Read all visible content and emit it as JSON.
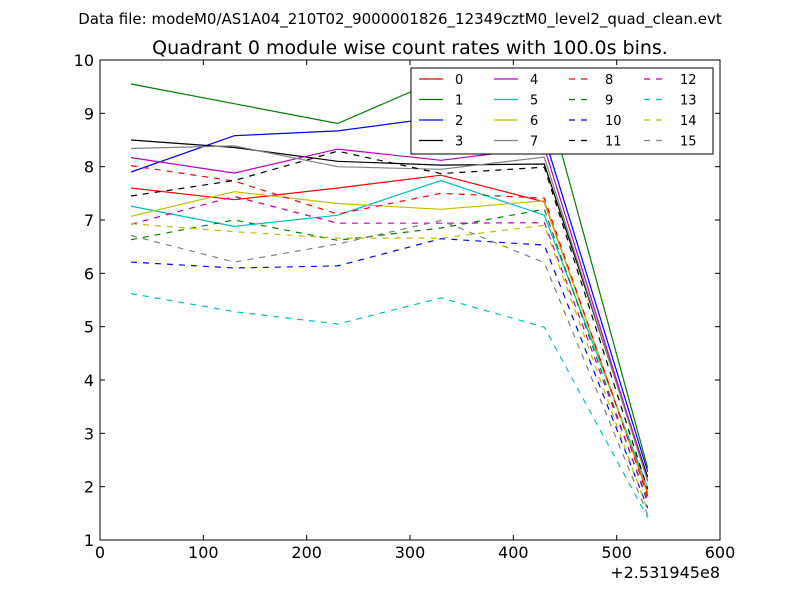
{
  "suptitle": "Data file: modeM0/AS1A04_210T02_9000001826_12349cztM0_level2_quad_clean.evt",
  "chart_data": {
    "type": "line",
    "title": "Quadrant 0 module wise count rates with 100.0s bins.",
    "xlabel": "",
    "ylabel": "",
    "x_offset_label": "+2.531945e8",
    "xlim": [
      0,
      600
    ],
    "ylim": [
      1,
      10
    ],
    "xticks": [
      0,
      100,
      200,
      300,
      400,
      500,
      600
    ],
    "yticks": [
      1,
      2,
      3,
      4,
      5,
      6,
      7,
      8,
      9,
      10
    ],
    "grid": false,
    "legend_position": "top-right",
    "x": [
      30,
      130,
      230,
      330,
      430,
      530
    ],
    "series": [
      {
        "name": "0",
        "color": "#ff0000",
        "dash": "solid",
        "values": [
          7.6,
          7.38,
          7.6,
          7.84,
          7.34,
          1.88
        ]
      },
      {
        "name": "1",
        "color": "#008000",
        "dash": "solid",
        "values": [
          9.55,
          9.18,
          8.81,
          9.65,
          9.44,
          2.35
        ]
      },
      {
        "name": "2",
        "color": "#0000ff",
        "dash": "solid",
        "values": [
          7.9,
          8.58,
          8.67,
          8.93,
          8.56,
          2.28
        ]
      },
      {
        "name": "3",
        "color": "#000000",
        "dash": "solid",
        "values": [
          8.5,
          8.36,
          8.1,
          8.03,
          8.05,
          2.18
        ]
      },
      {
        "name": "4",
        "color": "#bf00bf",
        "dash": "solid",
        "values": [
          8.17,
          7.88,
          8.33,
          8.12,
          8.36,
          2.12
        ]
      },
      {
        "name": "5",
        "color": "#00bfbf",
        "dash": "solid",
        "values": [
          7.26,
          6.88,
          7.09,
          7.74,
          7.09,
          1.98
        ]
      },
      {
        "name": "6",
        "color": "#bfbf00",
        "dash": "solid",
        "values": [
          7.07,
          7.53,
          7.31,
          7.2,
          7.36,
          1.85
        ]
      },
      {
        "name": "7",
        "color": "#808080",
        "dash": "solid",
        "values": [
          8.34,
          8.39,
          8.0,
          7.95,
          8.18,
          2.1
        ]
      },
      {
        "name": "8",
        "color": "#ff0000",
        "dash": "dashed",
        "values": [
          8.02,
          7.73,
          7.11,
          7.5,
          7.41,
          1.82
        ]
      },
      {
        "name": "9",
        "color": "#008000",
        "dash": "dashed",
        "values": [
          6.63,
          7.0,
          6.62,
          6.85,
          7.2,
          1.7
        ]
      },
      {
        "name": "10",
        "color": "#0000ff",
        "dash": "dashed",
        "values": [
          6.21,
          6.1,
          6.14,
          6.65,
          6.53,
          1.6
        ]
      },
      {
        "name": "11",
        "color": "#000000",
        "dash": "dashed",
        "values": [
          7.45,
          7.74,
          8.29,
          7.87,
          7.99,
          1.95
        ]
      },
      {
        "name": "12",
        "color": "#bf00bf",
        "dash": "dashed",
        "values": [
          6.92,
          7.44,
          6.94,
          6.94,
          6.95,
          1.75
        ]
      },
      {
        "name": "13",
        "color": "#00bfbf",
        "dash": "dashed",
        "values": [
          5.62,
          5.28,
          5.05,
          5.54,
          4.99,
          1.42
        ]
      },
      {
        "name": "14",
        "color": "#bfbf00",
        "dash": "dashed",
        "values": [
          6.93,
          6.78,
          6.66,
          6.66,
          6.9,
          1.55
        ]
      },
      {
        "name": "15",
        "color": "#808080",
        "dash": "dashed",
        "values": [
          6.71,
          6.21,
          6.55,
          6.99,
          6.2,
          1.47
        ]
      }
    ]
  }
}
